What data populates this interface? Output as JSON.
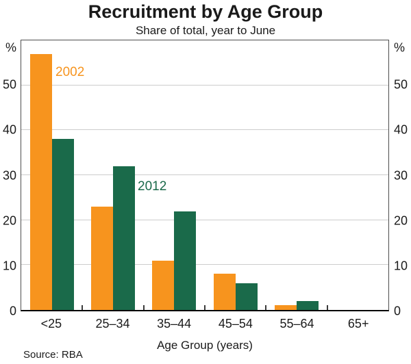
{
  "header": {
    "title": "Recruitment by Age Group",
    "subtitle": "Share of total, year to June"
  },
  "footer": {
    "source": "Source: RBA"
  },
  "chart_data": {
    "type": "bar",
    "title": "Recruitment by Age Group",
    "subtitle": "Share of total, year to June",
    "categories": [
      "<25",
      "25–34",
      "35–44",
      "45–54",
      "55–64",
      "65+"
    ],
    "series": [
      {
        "name": "2002",
        "color": "#F7941E",
        "values": [
          57,
          23,
          11,
          8,
          1,
          0
        ]
      },
      {
        "name": "2012",
        "color": "#1A6A4A",
        "values": [
          38,
          32,
          22,
          6,
          2,
          0
        ]
      }
    ],
    "xlabel": "Age Group (years)",
    "ylabel_left": "%",
    "ylabel_right": "%",
    "ylim": [
      0,
      60
    ],
    "yticks": [
      0,
      10,
      20,
      30,
      40,
      50
    ],
    "grid": true,
    "legend_position": "inline-annotations",
    "colors": {
      "gridline": "#cccccc",
      "frame": "#4d4d4d",
      "baseline": "#000000",
      "text": "#1a1a1a"
    }
  }
}
